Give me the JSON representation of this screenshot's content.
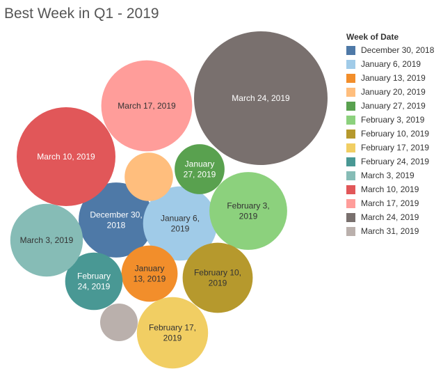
{
  "title": "Best Week in Q1 - 2019",
  "chart_data": {
    "type": "bubble",
    "title": "Best Week in Q1 - 2019",
    "legend_title": "Week of Date",
    "legend_position": "right",
    "series": [
      {
        "name": "December 30, 2018",
        "label_lines": [
          "December 30,",
          "2018"
        ],
        "color": "#4e79a7",
        "text_color": "#ffffff"
      },
      {
        "name": "January 6, 2019",
        "label_lines": [
          "January 6,",
          "2019"
        ],
        "color": "#a0cbe8",
        "text_color": "#333333"
      },
      {
        "name": "January 13, 2019",
        "label_lines": [
          "January",
          "13, 2019"
        ],
        "color": "#f28e2b",
        "text_color": "#333333"
      },
      {
        "name": "January 20, 2019",
        "label_lines": [],
        "color": "#ffbe7d",
        "text_color": "#333333"
      },
      {
        "name": "January 27, 2019",
        "label_lines": [
          "January",
          "27, 2019"
        ],
        "color": "#59a14f",
        "text_color": "#ffffff"
      },
      {
        "name": "February 3, 2019",
        "label_lines": [
          "February 3,",
          "2019"
        ],
        "color": "#8cd17d",
        "text_color": "#333333"
      },
      {
        "name": "February 10, 2019",
        "label_lines": [
          "February 10,",
          "2019"
        ],
        "color": "#b6992d",
        "text_color": "#333333"
      },
      {
        "name": "February 17, 2019",
        "label_lines": [
          "February 17,",
          "2019"
        ],
        "color": "#f1ce63",
        "text_color": "#333333"
      },
      {
        "name": "February 24, 2019",
        "label_lines": [
          "February",
          "24, 2019"
        ],
        "color": "#499894",
        "text_color": "#ffffff"
      },
      {
        "name": "March 3, 2019",
        "label_lines": [
          "March 3, 2019"
        ],
        "color": "#86bcb6",
        "text_color": "#333333"
      },
      {
        "name": "March 10, 2019",
        "label_lines": [
          "March 10, 2019"
        ],
        "color": "#e15759",
        "text_color": "#ffffff"
      },
      {
        "name": "March 17, 2019",
        "label_lines": [
          "March 17, 2019"
        ],
        "color": "#ff9d9a",
        "text_color": "#333333"
      },
      {
        "name": "March 24, 2019",
        "label_lines": [
          "March 24, 2019"
        ],
        "color": "#79706e",
        "text_color": "#ffffff"
      },
      {
        "name": "March 31, 2019",
        "label_lines": [],
        "color": "#bab0ac",
        "text_color": "#333333"
      }
    ],
    "values": [
      {
        "week": "December 30, 2018",
        "value": 2860
      },
      {
        "week": "January 6, 2019",
        "value": 2800
      },
      {
        "week": "January 13, 2019",
        "value": 1610
      },
      {
        "week": "January 20, 2019",
        "value": 1190
      },
      {
        "week": "January 27, 2019",
        "value": 1270
      },
      {
        "week": "February 3, 2019",
        "value": 3080
      },
      {
        "week": "February 10, 2019",
        "value": 2500
      },
      {
        "week": "February 17, 2019",
        "value": 2580
      },
      {
        "week": "February 24, 2019",
        "value": 1680
      },
      {
        "week": "March 3, 2019",
        "value": 2680
      },
      {
        "week": "March 10, 2019",
        "value": 4960
      },
      {
        "week": "March 17, 2019",
        "value": 4210
      },
      {
        "week": "March 24, 2019",
        "value": 9070
      },
      {
        "week": "March 31, 2019",
        "value": 720
      }
    ]
  }
}
